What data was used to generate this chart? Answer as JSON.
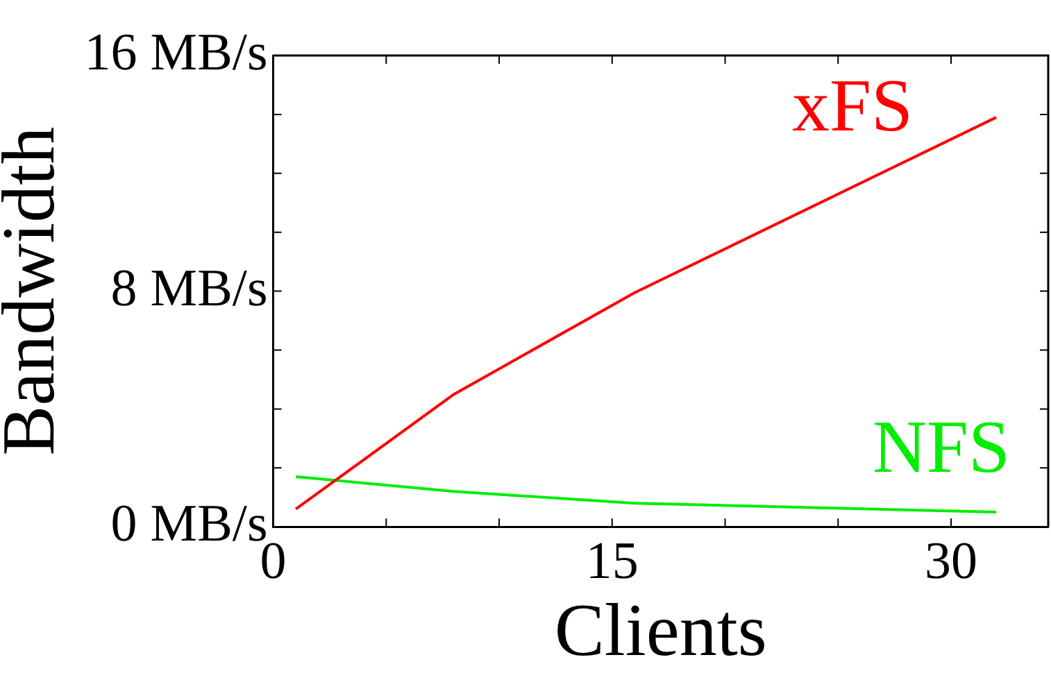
{
  "chart_data": {
    "type": "line",
    "xlabel": "Clients",
    "ylabel": "Bandwidth",
    "xlim": [
      0,
      34.3
    ],
    "xticks": [
      0,
      {
        "value": 5,
        "label": null
      },
      {
        "value": 10,
        "label": null
      },
      15,
      {
        "value": 20,
        "label": null
      },
      {
        "value": 25,
        "label": null
      },
      30
    ],
    "ylim": [
      0,
      16
    ],
    "yticks": [
      {
        "value": 0,
        "label": "0 MB/s"
      },
      {
        "value": 2,
        "label": null
      },
      {
        "value": 4,
        "label": null
      },
      {
        "value": 6,
        "label": null
      },
      {
        "value": 8,
        "label": "8 MB/s"
      },
      {
        "value": 10,
        "label": null
      },
      {
        "value": 12,
        "label": null
      },
      {
        "value": 14,
        "label": null
      },
      {
        "value": 16,
        "label": "16 MB/s"
      }
    ],
    "grid": false,
    "legend": false,
    "marker": "none",
    "line_style": "solid",
    "series": [
      {
        "name": "xFS",
        "color": "#ff0000",
        "x": [
          1,
          8,
          16,
          32
        ],
        "values": [
          0.6,
          4.5,
          7.95,
          13.9
        ]
      },
      {
        "name": "NFS",
        "color": "#00ee00",
        "x": [
          1,
          8,
          16,
          32
        ],
        "values": [
          1.7,
          1.2,
          0.8,
          0.5
        ]
      }
    ]
  }
}
